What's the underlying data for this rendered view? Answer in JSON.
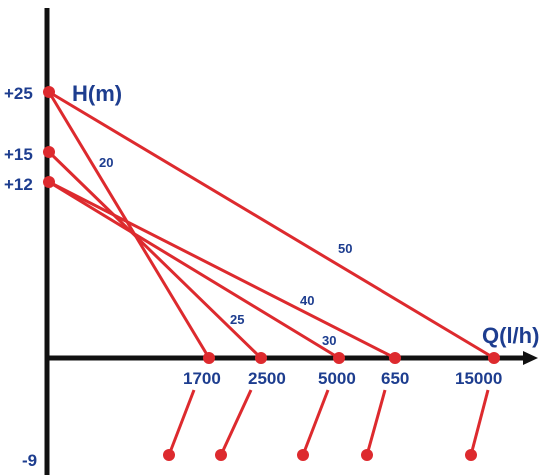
{
  "axes": {
    "y_title": "H(m)",
    "x_title": "Q(l/h)",
    "y_ticks": [
      {
        "id": "y25",
        "label": "+25"
      },
      {
        "id": "y15",
        "label": "+15"
      },
      {
        "id": "y12",
        "label": "+12"
      },
      {
        "id": "yneg9",
        "label": "-9"
      }
    ],
    "x_ticks": [
      {
        "id": "x1700",
        "label": "1700"
      },
      {
        "id": "x2500",
        "label": "2500"
      },
      {
        "id": "x5000",
        "label": "5000"
      },
      {
        "id": "x650",
        "label": "650"
      },
      {
        "id": "x15000",
        "label": "15000"
      }
    ]
  },
  "lines": [
    {
      "id": "l20",
      "label": "20",
      "from": "y25",
      "to": "x1700"
    },
    {
      "id": "l50",
      "label": "50",
      "from": "y25",
      "to": "x15000"
    },
    {
      "id": "l25",
      "label": "25",
      "from": "y15",
      "to": "x2500"
    },
    {
      "id": "l40",
      "label": "40",
      "from": "y12",
      "to": "x650"
    },
    {
      "id": "l30",
      "label": "30",
      "from": "y12",
      "to": "x5000"
    }
  ],
  "colors": {
    "axis": "#111111",
    "line": "#dd2a2e",
    "point": "#dd2a2e",
    "text": "#1d3d8f"
  }
}
